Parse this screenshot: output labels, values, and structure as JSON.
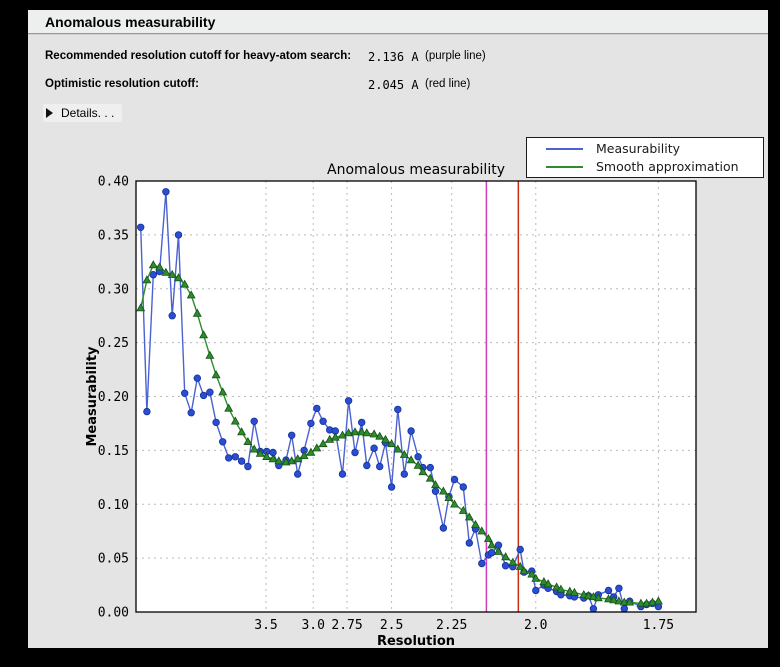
{
  "header": {
    "title": "Anomalous measurability"
  },
  "info_rows": [
    {
      "label": "Recommended resolution cutoff for heavy-atom search:",
      "value": "2.136 A",
      "note": "(purple line)"
    },
    {
      "label": "Optimistic resolution cutoff:",
      "value": "2.045 A",
      "note": "(red line)"
    }
  ],
  "details": {
    "label": "Details. . ."
  },
  "colors": {
    "panel_bg": "#e4e4e4",
    "header_bg": "#edefef",
    "plot_bg": "#ffffff",
    "grid": "#bbbbbb",
    "frame": "#000000",
    "measurability_line": "#4a62d2",
    "measurability_marker": "#2a4ed2",
    "measurability_marker_edge": "#16309b",
    "smooth_line": "#2e8b2e",
    "smooth_marker": "#2e8b2e",
    "smooth_marker_edge": "#145214",
    "purple_cutoff_line": "#cc3fc0",
    "red_cutoff_line": "#cc2e0e"
  },
  "chart_data": {
    "type": "line",
    "title": "Anomalous measurability",
    "xlabel": "Resolution",
    "ylabel": "Measurability",
    "grid": true,
    "legend_position": "top-right",
    "x_axis_note": "resolution in Angstrom, plotted on 1/d^2 scale, s range 0.0005-0.35",
    "s_min": 0.0005,
    "s_max": 0.35,
    "x_ticks": {
      "values": [
        3.5,
        3.0,
        2.75,
        2.5,
        2.25,
        2.0,
        1.75
      ],
      "labels": [
        "3.5",
        "3.0",
        "2.75",
        "2.5",
        "2.25",
        "2.0",
        "1.75"
      ]
    },
    "ylim": [
      0.0,
      0.4
    ],
    "y_ticks": {
      "values": [
        0.0,
        0.05,
        0.1,
        0.15,
        0.2,
        0.25,
        0.3,
        0.35,
        0.4
      ],
      "labels": [
        "0.00",
        "0.05",
        "0.10",
        "0.15",
        "0.20",
        "0.25",
        "0.30",
        "0.35",
        "0.40"
      ]
    },
    "x_resolution": [
      17.1,
      11.7,
      9.41,
      8.11,
      7.23,
      6.58,
      6.08,
      5.69,
      5.35,
      5.08,
      4.84,
      4.63,
      4.45,
      4.28,
      4.14,
      4.0,
      3.88,
      3.77,
      3.67,
      3.58,
      3.49,
      3.41,
      3.34,
      3.26,
      3.2,
      3.14,
      3.08,
      3.02,
      2.97,
      2.92,
      2.87,
      2.83,
      2.78,
      2.74,
      2.7,
      2.66,
      2.63,
      2.59,
      2.56,
      2.53,
      2.5,
      2.47,
      2.44,
      2.41,
      2.38,
      2.36,
      2.33,
      2.31,
      2.28,
      2.26,
      2.24,
      2.21,
      2.19,
      2.17,
      2.15,
      2.13,
      2.12,
      2.1,
      2.08,
      2.06,
      2.04,
      2.03,
      2.01,
      2.0,
      1.98,
      1.97,
      1.95,
      1.94,
      1.92,
      1.91,
      1.89,
      1.88,
      1.87,
      1.86,
      1.84,
      1.83,
      1.82,
      1.81,
      1.8,
      1.78,
      1.77,
      1.76,
      1.75
    ],
    "series": [
      {
        "name": "Measurability",
        "marker": "circle",
        "values": [
          0.357,
          0.186,
          0.313,
          0.316,
          0.39,
          0.275,
          0.35,
          0.203,
          0.185,
          0.217,
          0.201,
          0.204,
          0.176,
          0.158,
          0.143,
          0.144,
          0.14,
          0.135,
          0.177,
          0.149,
          0.149,
          0.148,
          0.136,
          0.141,
          0.164,
          0.128,
          0.15,
          0.175,
          0.189,
          0.177,
          0.169,
          0.168,
          0.128,
          0.196,
          0.148,
          0.176,
          0.136,
          0.152,
          0.135,
          0.157,
          0.116,
          0.188,
          0.128,
          0.168,
          0.144,
          0.134,
          0.134,
          0.112,
          0.078,
          0.107,
          0.123,
          0.116,
          0.064,
          0.077,
          0.045,
          0.053,
          0.055,
          0.062,
          0.043,
          0.042,
          0.058,
          0.037,
          0.038,
          0.02,
          0.025,
          0.022,
          0.019,
          0.016,
          0.015,
          0.014,
          0.013,
          0.015,
          0.003,
          0.016,
          0.02,
          0.014,
          0.022,
          0.003,
          0.01,
          0.005,
          0.007,
          0.008,
          0.005
        ]
      },
      {
        "name": "Smooth approximation",
        "marker": "triangle-up",
        "values": [
          0.282,
          0.308,
          0.322,
          0.32,
          0.315,
          0.313,
          0.31,
          0.304,
          0.294,
          0.277,
          0.257,
          0.238,
          0.22,
          0.204,
          0.189,
          0.177,
          0.167,
          0.158,
          0.151,
          0.147,
          0.144,
          0.142,
          0.14,
          0.139,
          0.14,
          0.142,
          0.145,
          0.148,
          0.152,
          0.156,
          0.16,
          0.162,
          0.164,
          0.166,
          0.167,
          0.167,
          0.166,
          0.165,
          0.163,
          0.16,
          0.156,
          0.151,
          0.146,
          0.141,
          0.136,
          0.13,
          0.124,
          0.118,
          0.112,
          0.106,
          0.1,
          0.094,
          0.088,
          0.081,
          0.075,
          0.068,
          0.062,
          0.056,
          0.051,
          0.046,
          0.042,
          0.038,
          0.035,
          0.031,
          0.028,
          0.026,
          0.023,
          0.021,
          0.019,
          0.018,
          0.016,
          0.015,
          0.014,
          0.013,
          0.012,
          0.011,
          0.01,
          0.009,
          0.009,
          0.008,
          0.008,
          0.009,
          0.01
        ]
      }
    ],
    "vlines": [
      {
        "resolution": 2.136,
        "color_key": "purple_cutoff_line",
        "label": "purple line"
      },
      {
        "resolution": 2.045,
        "color_key": "red_cutoff_line",
        "label": "red line"
      }
    ]
  }
}
